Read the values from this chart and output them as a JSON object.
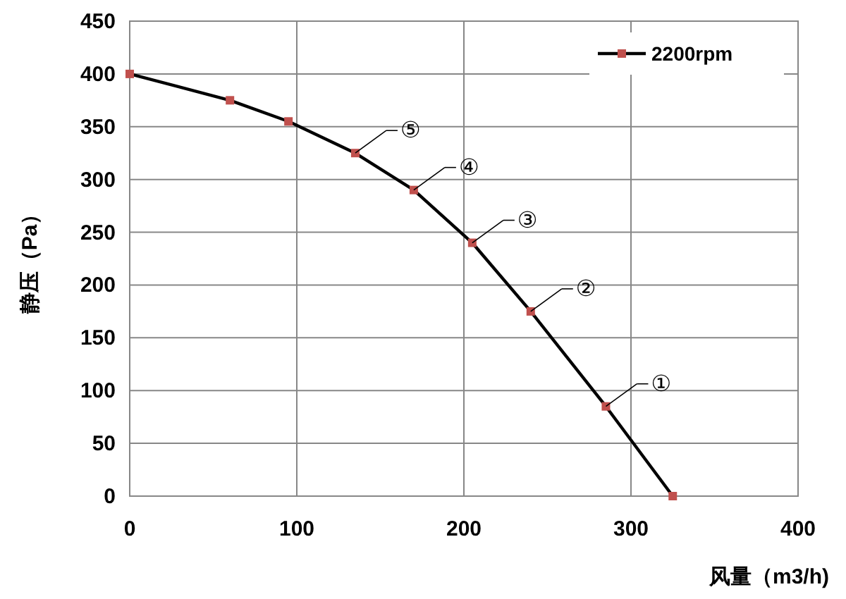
{
  "chart_data": {
    "type": "line",
    "xlabel": "风量（m3/h)",
    "ylabel": "静压（Pa）",
    "x": [
      0,
      60,
      95,
      135,
      170,
      205,
      240,
      285,
      325
    ],
    "series": [
      {
        "name": "2200rpm",
        "color": "#000000",
        "colors": [
          "#c0504d",
          "#c0504d",
          "#c0504d",
          "#c0504d",
          "#c0504d",
          "#c0504d",
          "#c0504d",
          "#c0504d",
          "#c0504d"
        ],
        "values": [
          400,
          375,
          355,
          325,
          290,
          240,
          175,
          85,
          0
        ]
      }
    ],
    "xlim": [
      0,
      400
    ],
    "xticks": [
      0,
      100,
      200,
      300,
      400
    ],
    "ylim": [
      0,
      450
    ],
    "yticks": [
      0,
      50,
      100,
      150,
      200,
      250,
      300,
      350,
      400,
      450
    ],
    "grid": true,
    "legend": "top right",
    "marker": "square",
    "line_style": "solid",
    "annotations": [
      {
        "text": "⑤",
        "x": 135,
        "y": 325
      },
      {
        "text": "④",
        "x": 170,
        "y": 290
      },
      {
        "text": "③",
        "x": 205,
        "y": 240
      },
      {
        "text": "②",
        "x": 240,
        "y": 175
      },
      {
        "text": "①",
        "x": 285,
        "y": 85
      }
    ]
  }
}
